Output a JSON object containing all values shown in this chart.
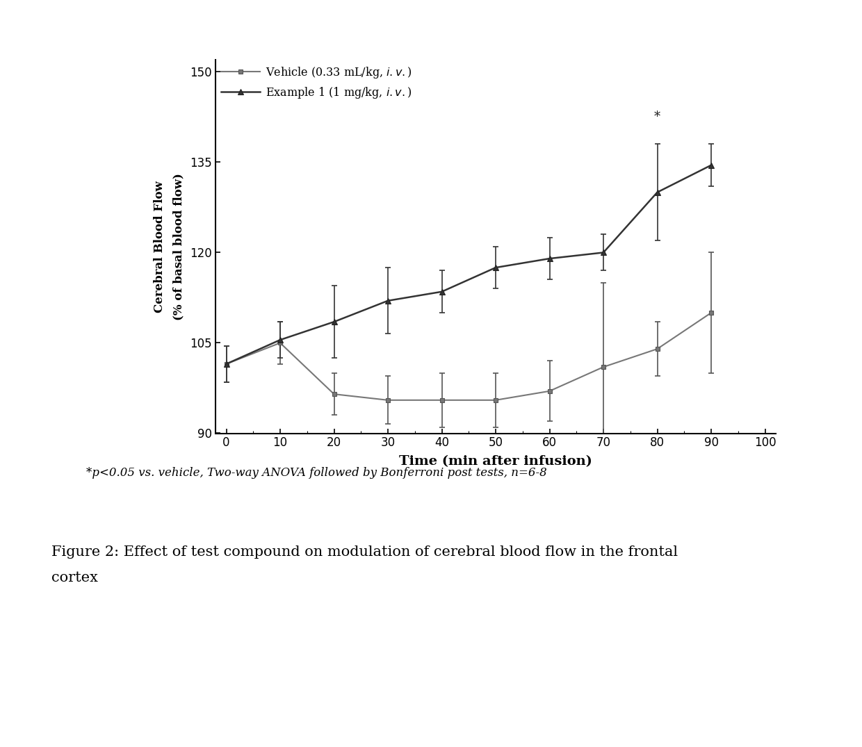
{
  "time": [
    0,
    10,
    20,
    30,
    40,
    50,
    60,
    70,
    80,
    90
  ],
  "vehicle_mean": [
    101.5,
    105.0,
    96.5,
    95.5,
    95.5,
    95.5,
    97.0,
    101.0,
    104.0,
    110.0
  ],
  "vehicle_err_low": [
    3.0,
    3.5,
    3.5,
    4.0,
    4.5,
    4.5,
    5.0,
    14.0,
    4.5,
    10.0
  ],
  "vehicle_err_high": [
    3.0,
    3.5,
    3.5,
    4.0,
    4.5,
    4.5,
    5.0,
    14.0,
    4.5,
    10.0
  ],
  "example1_mean": [
    101.5,
    105.5,
    108.5,
    112.0,
    113.5,
    117.5,
    119.0,
    120.0,
    130.0,
    134.5
  ],
  "example1_err_low": [
    3.0,
    3.0,
    6.0,
    5.5,
    3.5,
    3.5,
    3.5,
    3.0,
    8.0,
    3.5
  ],
  "example1_err_high": [
    3.0,
    3.0,
    6.0,
    5.5,
    3.5,
    3.5,
    3.5,
    3.0,
    8.0,
    3.5
  ],
  "star_x": 80,
  "star_y": 141.5,
  "xlabel": "Time (min after infusion)",
  "ylabel": "Cerebral Blood Flow\n(% of basal blood flow)",
  "ylim": [
    90,
    152
  ],
  "xlim": [
    -2,
    102
  ],
  "yticks": [
    90,
    105,
    120,
    135,
    150
  ],
  "xticks": [
    0,
    10,
    20,
    30,
    40,
    50,
    60,
    70,
    80,
    90,
    100
  ],
  "footnote": "*p<0.05 vs. vehicle, Two-way ANOVA followed by Bonferroni post tests, n=6-8",
  "figure_caption_line1": "Figure 2: Effect of test compound on modulation of cerebral blood flow in the frontal",
  "figure_caption_line2": "cortex",
  "background_color": "#ffffff"
}
